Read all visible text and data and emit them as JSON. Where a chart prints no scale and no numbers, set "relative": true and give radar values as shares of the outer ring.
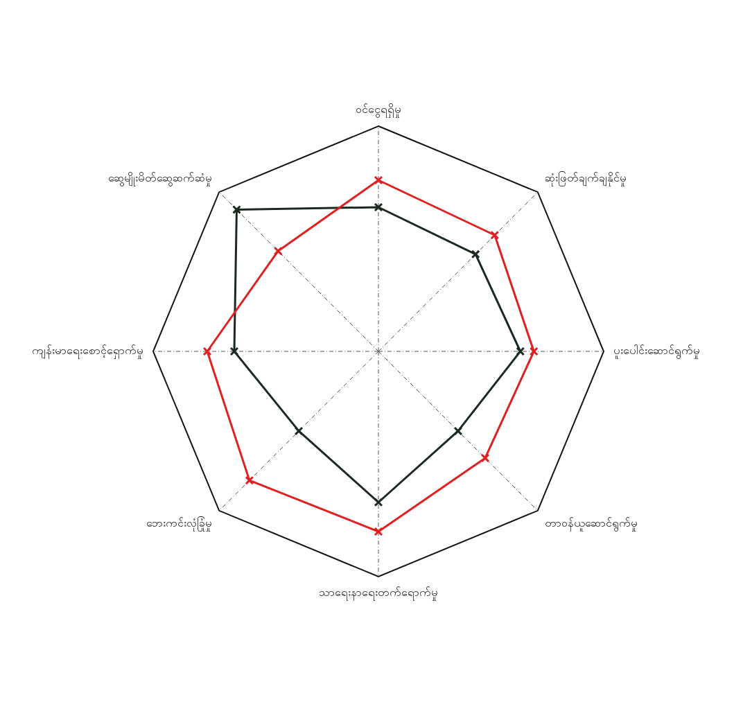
{
  "chart_data": {
    "type": "radar",
    "relative": true,
    "marker": "cross",
    "legend": false,
    "categories": [
      "ဝင်ငွေရရှိမှု",
      "ဆုံးဖြတ်ချက်ချနိုင်မှု",
      "ပူးပေါင်းဆောင်ရွက်မှု",
      "တာဝန်ယူဆောင်ရွက်မှု",
      "သာရေးနာရေးတက်ရောက်မှု",
      "ဘေးကင်းလုံခြုံမှု",
      "ကျန်းမာရေးစောင့်ရှောက်မှု",
      "ဆွေမျိုးမိတ်ဆွေဆက်ဆံမှု"
    ],
    "series": [
      {
        "color": "#e02020",
        "values": [
          0.76,
          0.73,
          0.69,
          0.67,
          0.8,
          0.81,
          0.76,
          0.63
        ]
      },
      {
        "color": "#1a2a1e",
        "values": [
          0.64,
          0.61,
          0.63,
          0.5,
          0.67,
          0.5,
          0.64,
          0.89
        ]
      }
    ]
  }
}
